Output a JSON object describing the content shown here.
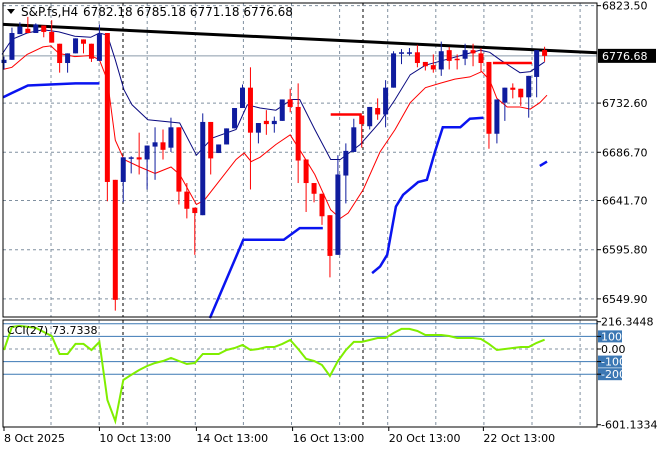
{
  "header": {
    "symbol": "S&P.fs,H4",
    "ohlc": "6782.18 6785.18 6771.18 6776.68"
  },
  "colors": {
    "bull": "#0f1c9e",
    "bear": "#ff0000",
    "ma_fast": "#0a0a80",
    "ma_slow": "#ff0000",
    "support": "#0a14f0",
    "trendline": "#000000",
    "cci": "#80ee00",
    "cci_level": "#3c78b4",
    "grid": "#8090a0"
  },
  "chart_data": [
    {
      "type": "candlestick",
      "title": "S&P.fs,H4",
      "ylim": [
        6533,
        6826
      ],
      "grid": true,
      "price_ticks": [
        "6823.50",
        "6732.60",
        "6686.70",
        "6641.70",
        "6595.80",
        "6549.90"
      ],
      "current_price": "6776.68",
      "x_labels": [
        {
          "bar": 1,
          "label": "8 Oct 2025"
        },
        {
          "bar": 13,
          "label": "10 Oct 13:00"
        },
        {
          "bar": 25.2,
          "label": "14 Oct 13:00"
        },
        {
          "bar": 37.3,
          "label": "16 Oct 13:00"
        },
        {
          "bar": 49.4,
          "label": "20 Oct 13:00"
        },
        {
          "bar": 61.3,
          "label": "22 Oct 13:00"
        }
      ],
      "candles": [
        [
          6770,
          6776,
          6764,
          6773
        ],
        [
          6773,
          6803,
          6773,
          6798
        ],
        [
          6797,
          6808,
          6797,
          6804
        ],
        [
          6802,
          6813,
          6798,
          6798
        ],
        [
          6798,
          6807,
          6798,
          6806
        ],
        [
          6805,
          6805,
          6794,
          6799
        ],
        [
          6799,
          6810,
          6789,
          6789
        ],
        [
          6788,
          6788,
          6761,
          6770
        ],
        [
          6770,
          6779,
          6761,
          6779
        ],
        [
          6779,
          6793,
          6779,
          6793
        ],
        [
          6792,
          6792,
          6779,
          6788
        ],
        [
          6788,
          6788,
          6771,
          6774
        ],
        [
          6772,
          6806,
          6772,
          6797
        ],
        [
          6798,
          6798,
          6641,
          6659
        ],
        [
          6661,
          6661,
          6539,
          6549
        ],
        [
          6659,
          6682,
          6640,
          6682
        ],
        [
          6681,
          6683,
          6667,
          6682
        ],
        [
          6682,
          6705,
          6666,
          6680
        ],
        [
          6680,
          6693,
          6652,
          6693
        ],
        [
          6692,
          6710,
          6661,
          6696
        ],
        [
          6696,
          6708,
          6680,
          6689
        ],
        [
          6691,
          6719,
          6687,
          6710
        ],
        [
          6710,
          6710,
          6638,
          6650
        ],
        [
          6650,
          6658,
          6625,
          6634
        ],
        [
          6635,
          6635,
          6591,
          6630
        ],
        [
          6628,
          6723,
          6628,
          6715
        ],
        [
          6715,
          6715,
          6666,
          6681
        ],
        [
          6686,
          6694,
          6686,
          6694
        ],
        [
          6694,
          6709,
          6694,
          6709
        ],
        [
          6709,
          6728,
          6709,
          6728
        ],
        [
          6728,
          6750,
          6728,
          6747
        ],
        [
          6747,
          6766,
          6652,
          6705
        ],
        [
          6705,
          6714,
          6695,
          6714
        ],
        [
          6716,
          6726,
          6703,
          6713
        ],
        [
          6713,
          6720,
          6705,
          6716
        ],
        [
          6716,
          6736,
          6716,
          6736
        ],
        [
          6736,
          6746,
          6724,
          6729
        ],
        [
          6729,
          6751,
          6658,
          6679
        ],
        [
          6680,
          6680,
          6631,
          6658
        ],
        [
          6658,
          6658,
          6640,
          6648
        ],
        [
          6648,
          6648,
          6619,
          6627
        ],
        [
          6628,
          6628,
          6570,
          6590
        ],
        [
          6591,
          6684,
          6591,
          6666
        ],
        [
          6665,
          6695,
          6639,
          6688
        ],
        [
          6687,
          6718,
          6687,
          6710
        ],
        [
          6721,
          6721,
          6691,
          6713
        ],
        [
          6711,
          6729,
          6708,
          6729
        ],
        [
          6728,
          6737,
          6717,
          6722
        ],
        [
          6722,
          6754,
          6710,
          6747
        ],
        [
          6747,
          6781,
          6747,
          6779
        ],
        [
          6779,
          6783,
          6769,
          6780
        ],
        [
          6779,
          6784,
          6777,
          6780
        ],
        [
          6780,
          6787,
          6766,
          6770
        ],
        [
          6771,
          6771,
          6763,
          6767
        ],
        [
          6768,
          6778,
          6761,
          6764
        ],
        [
          6764,
          6790,
          6758,
          6781
        ],
        [
          6782,
          6785,
          6764,
          6772
        ],
        [
          6774,
          6778,
          6764,
          6773
        ],
        [
          6774,
          6788,
          6768,
          6782
        ],
        [
          6782,
          6788,
          6767,
          6779
        ],
        [
          6779,
          6784,
          6762,
          6770
        ],
        [
          6771,
          6771,
          6690,
          6704
        ],
        [
          6704,
          6736,
          6695,
          6736
        ],
        [
          6733,
          6747,
          6716,
          6747
        ],
        [
          6747,
          6751,
          6737,
          6745
        ],
        [
          6746,
          6746,
          6730,
          6738
        ],
        [
          6738,
          6758,
          6719,
          6758
        ],
        [
          6757,
          6782,
          6738,
          6782
        ],
        [
          6782.18,
          6785.18,
          6771.18,
          6776.68
        ]
      ],
      "ma_fast": [
        [
          0.75,
          6778
        ],
        [
          2,
          6792
        ],
        [
          3.9,
          6798
        ],
        [
          5.9,
          6801
        ],
        [
          7.9,
          6799
        ],
        [
          9.9,
          6795
        ],
        [
          11.9,
          6794
        ],
        [
          13,
          6798
        ],
        [
          14,
          6796
        ],
        [
          15,
          6773
        ],
        [
          16.1,
          6745
        ],
        [
          17.1,
          6731
        ],
        [
          19.1,
          6717
        ],
        [
          23.1,
          6714
        ],
        [
          25.2,
          6684
        ],
        [
          27.2,
          6700
        ],
        [
          30.2,
          6708
        ],
        [
          31.6,
          6731
        ],
        [
          33.2,
          6728
        ],
        [
          35.2,
          6726
        ],
        [
          37.2,
          6736
        ],
        [
          38.2,
          6736
        ],
        [
          40.1,
          6708
        ],
        [
          42.1,
          6680
        ],
        [
          43.3,
          6680
        ],
        [
          45.8,
          6694
        ],
        [
          48.3,
          6715
        ],
        [
          50.2,
          6736
        ],
        [
          52.1,
          6759
        ],
        [
          54,
          6768
        ],
        [
          56.5,
          6773
        ],
        [
          59,
          6778
        ],
        [
          60.9,
          6782
        ],
        [
          62.1,
          6780
        ],
        [
          63.4,
          6773
        ],
        [
          65.9,
          6761
        ],
        [
          67.2,
          6762
        ],
        [
          69,
          6771
        ]
      ],
      "ma_slow": [
        [
          0.9,
          6764
        ],
        [
          2,
          6766
        ],
        [
          3.9,
          6778
        ],
        [
          5.9,
          6785
        ],
        [
          6.9,
          6786
        ],
        [
          7.9,
          6779
        ],
        [
          9.9,
          6776
        ],
        [
          11.9,
          6777
        ],
        [
          13,
          6773
        ],
        [
          14,
          6754
        ],
        [
          15,
          6698
        ],
        [
          16.1,
          6680
        ],
        [
          18.1,
          6673
        ],
        [
          20,
          6667
        ],
        [
          22,
          6673
        ],
        [
          23.1,
          6666
        ],
        [
          25.2,
          6638
        ],
        [
          26.2,
          6642
        ],
        [
          28.2,
          6661
        ],
        [
          30.2,
          6680
        ],
        [
          31.2,
          6686
        ],
        [
          32.1,
          6678
        ],
        [
          33.2,
          6682
        ],
        [
          35.2,
          6694
        ],
        [
          37,
          6703
        ],
        [
          38.2,
          6689
        ],
        [
          40.1,
          6666
        ],
        [
          42.1,
          6633
        ],
        [
          43.3,
          6625
        ],
        [
          44.3,
          6630
        ],
        [
          46.2,
          6652
        ],
        [
          48.3,
          6687
        ],
        [
          50.2,
          6708
        ],
        [
          52.1,
          6733
        ],
        [
          54,
          6747
        ],
        [
          55.8,
          6751
        ],
        [
          57.7,
          6755
        ],
        [
          59.6,
          6757
        ],
        [
          61.1,
          6762
        ],
        [
          62.1,
          6754
        ],
        [
          63,
          6737
        ],
        [
          64.3,
          6729
        ],
        [
          65.9,
          6729
        ],
        [
          67.2,
          6727
        ],
        [
          68.4,
          6733
        ],
        [
          69.3,
          6740
        ]
      ],
      "support_segments": [
        [
          [
            0.9,
            6738
          ],
          [
            2,
            6742
          ],
          [
            4,
            6749
          ],
          [
            10,
            6751
          ],
          [
            13,
            6751
          ]
        ],
        [
          [
            26.9,
            6532
          ],
          [
            31.1,
            6605
          ],
          [
            36.2,
            6605
          ],
          [
            38.2,
            6616
          ],
          [
            41.1,
            6616
          ]
        ],
        [
          [
            47.3,
            6574
          ],
          [
            48.3,
            6580
          ],
          [
            49.2,
            6591
          ],
          [
            50.3,
            6636
          ],
          [
            51.2,
            6647
          ],
          [
            53.1,
            6659
          ],
          [
            54.2,
            6661
          ],
          [
            55.2,
            6687
          ],
          [
            56.2,
            6710
          ],
          [
            58.4,
            6710
          ],
          [
            59.6,
            6718
          ],
          [
            61.3,
            6719
          ]
        ],
        [
          [
            68.4,
            6674
          ],
          [
            69.3,
            6678
          ]
        ]
      ],
      "resistance_segments": [
        [
          [
            42.1,
            6722
          ],
          [
            46.0,
            6722
          ]
        ],
        [
          [
            62.5,
            6770
          ],
          [
            67.4,
            6770
          ]
        ]
      ],
      "trendline": [
        [
          0.9,
          6806
        ],
        [
          75.6,
          6779.5
        ]
      ]
    },
    {
      "type": "line",
      "title": "CCI(27)",
      "current_value": "73.7338",
      "ylim": [
        -619,
        230
      ],
      "levels": [
        200,
        100,
        -100,
        -200
      ],
      "tick_labels": [
        {
          "value": 216.3448,
          "label": "216.3448",
          "boxed": false
        },
        {
          "value": 100,
          "label": "100",
          "boxed": true
        },
        {
          "value": 0,
          "label": "0.00",
          "boxed": false
        },
        {
          "value": -100,
          "label": "-100",
          "boxed": true
        },
        {
          "value": -200,
          "label": "-200",
          "boxed": true
        },
        {
          "value": -601.1334,
          "label": "-601.1334",
          "boxed": false
        }
      ],
      "values": [
        -8,
        175,
        183,
        175,
        167,
        135,
        103,
        -40,
        -40,
        40,
        40,
        -8,
        56,
        -405,
        -572,
        -246,
        -206,
        -167,
        -135,
        -111,
        -95,
        -71,
        -95,
        -119,
        -111,
        -40,
        -40,
        -40,
        -8,
        8,
        32,
        -8,
        0,
        16,
        16,
        40,
        71,
        0,
        -79,
        -95,
        -127,
        -214,
        -95,
        -8,
        56,
        56,
        71,
        87,
        87,
        127,
        159,
        159,
        143,
        111,
        111,
        111,
        103,
        87,
        87,
        87,
        79,
        40,
        -8,
        0,
        8,
        16,
        16,
        48,
        73.7338
      ]
    }
  ]
}
